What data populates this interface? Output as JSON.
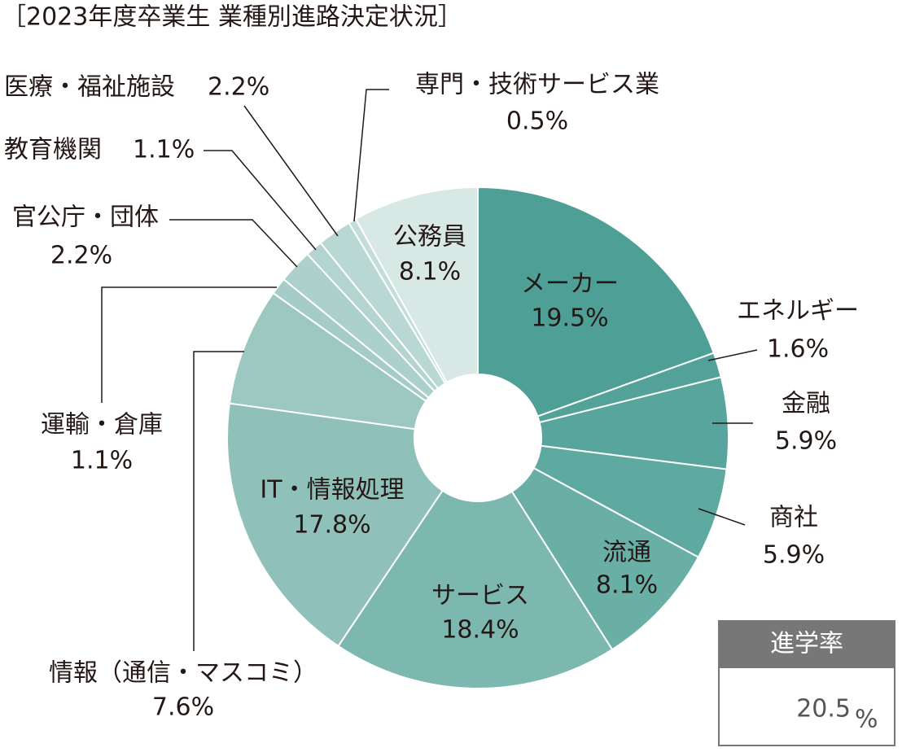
{
  "chart_data": {
    "type": "donut",
    "title": "［2023年度卒業生 業種別進路決定状況］",
    "categories": [
      "メーカー",
      "エネルギー",
      "金融",
      "商社",
      "流通",
      "サービス",
      "IT・情報処理",
      "情報（通信・マスコミ）",
      "運輸・倉庫",
      "官公庁・団体",
      "教育機関",
      "医療・福祉施設",
      "専門・技術サービス業",
      "公務員"
    ],
    "values": [
      19.5,
      1.6,
      5.9,
      5.9,
      8.1,
      18.4,
      17.8,
      7.6,
      1.1,
      2.2,
      1.1,
      2.2,
      0.5,
      8.1
    ],
    "value_labels": [
      "19.5%",
      "1.6%",
      "5.9%",
      "5.9%",
      "8.1%",
      "18.4%",
      "17.8%",
      "7.6%",
      "1.1%",
      "2.2%",
      "1.1%",
      "2.2%",
      "0.5%",
      "8.1%"
    ],
    "colors": [
      "#4ea096",
      "#52a299",
      "#57a59c",
      "#5ea9a0",
      "#6aafa6",
      "#7db8b0",
      "#8fc1ba",
      "#9dc7c1",
      "#a5ccc6",
      "#acd0cb",
      "#b3d4cf",
      "#bad8d3",
      "#c3ddd9",
      "#d8e8e5"
    ],
    "inset": {
      "label": "進学率",
      "value": 20.5,
      "unit": "%"
    }
  }
}
